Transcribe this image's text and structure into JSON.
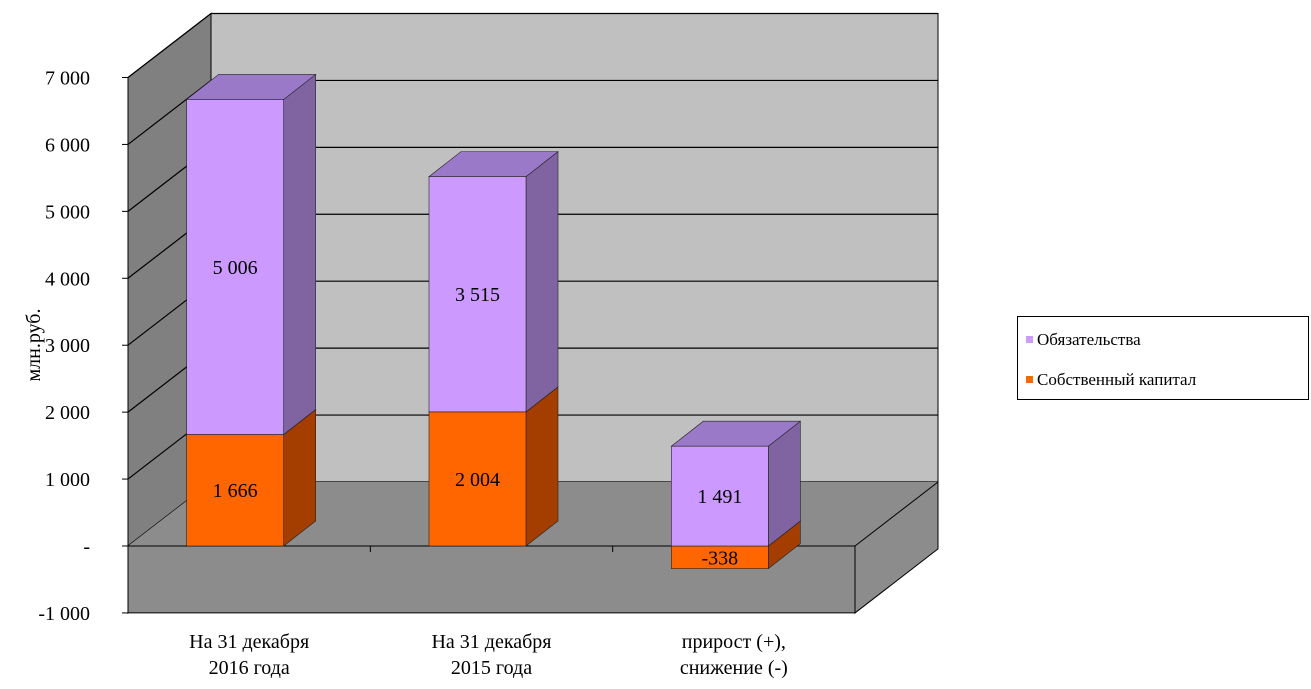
{
  "chart_data": {
    "type": "bar",
    "stacked": true,
    "three_d": true,
    "ylabel": "млн.руб.",
    "ylim": [
      -1000,
      7000
    ],
    "yticks": [
      {
        "value": 7000,
        "label": "7 000"
      },
      {
        "value": 6000,
        "label": "6 000"
      },
      {
        "value": 5000,
        "label": "5 000"
      },
      {
        "value": 4000,
        "label": "4 000"
      },
      {
        "value": 3000,
        "label": "3 000"
      },
      {
        "value": 2000,
        "label": "2 000"
      },
      {
        "value": 1000,
        "label": "1 000"
      },
      {
        "value": 0,
        "label": "-"
      },
      {
        "value": -1000,
        "label": "-1 000"
      }
    ],
    "categories": [
      [
        "На 31 декабря",
        "2016 года"
      ],
      [
        "На 31 декабря",
        "2015 года"
      ],
      [
        "прирост (+),",
        "снижение (-)"
      ]
    ],
    "series": [
      {
        "name": "Собственный капитал",
        "values": [
          1666,
          2004,
          -338
        ],
        "labels": [
          "1 666",
          "2 004",
          "-338"
        ],
        "front": "#ff6600",
        "side": "#a33d00",
        "top": "#c34f00"
      },
      {
        "name": "Обязательства",
        "values": [
          5006,
          3515,
          1491
        ],
        "labels": [
          "5 006",
          "3 515",
          "1 491"
        ],
        "front": "#cc99ff",
        "side": "#8064a2",
        "top": "#9a7ac8"
      }
    ],
    "legend_order": [
      1,
      0
    ],
    "legend_position": "right",
    "grid": true,
    "colors": {
      "back_wall": "#c0c0c0",
      "side_wall": "#808080",
      "floor": "#8c8c8c"
    }
  }
}
